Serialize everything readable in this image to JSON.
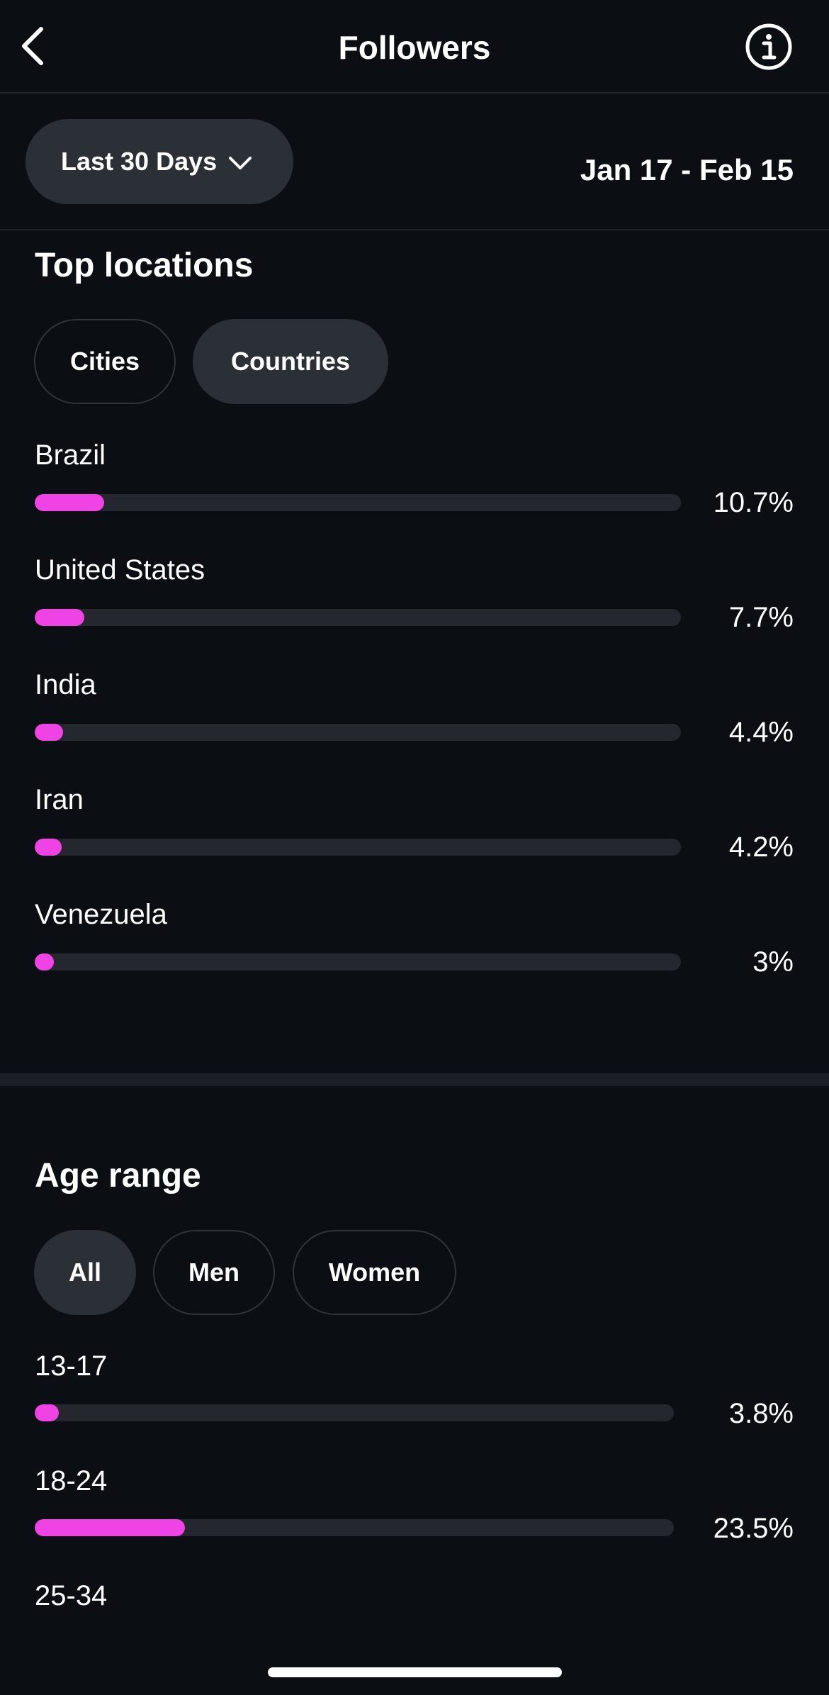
{
  "header": {
    "title": "Followers"
  },
  "filters": {
    "range_label": "Last 30 Days",
    "date_range": "Jan 17 - Feb 15"
  },
  "locations": {
    "title": "Top locations",
    "tabs": [
      {
        "label": "Cities",
        "active": false
      },
      {
        "label": "Countries",
        "active": true
      }
    ],
    "items": [
      {
        "label": "Brazil",
        "value": 10.7,
        "display": "10.7%"
      },
      {
        "label": "United States",
        "value": 7.7,
        "display": "7.7%"
      },
      {
        "label": "India",
        "value": 4.4,
        "display": "4.4%"
      },
      {
        "label": "Iran",
        "value": 4.2,
        "display": "4.2%"
      },
      {
        "label": "Venezuela",
        "value": 3.0,
        "display": "3%"
      }
    ]
  },
  "age": {
    "title": "Age range",
    "tabs": [
      {
        "label": "All",
        "active": true
      },
      {
        "label": "Men",
        "active": false
      },
      {
        "label": "Women",
        "active": false
      }
    ],
    "items": [
      {
        "label": "13-17",
        "value": 3.8,
        "display": "3.8%"
      },
      {
        "label": "18-24",
        "value": 23.5,
        "display": "23.5%"
      },
      {
        "label": "25-34"
      }
    ]
  },
  "colors": {
    "accent": "#f043e6",
    "background": "#0b0e13",
    "chip_active": "#2b2f36",
    "track": "#24272d"
  },
  "icons": {
    "back": "chevron-left-icon",
    "info": "info-icon",
    "dropdown": "chevron-down-icon"
  }
}
